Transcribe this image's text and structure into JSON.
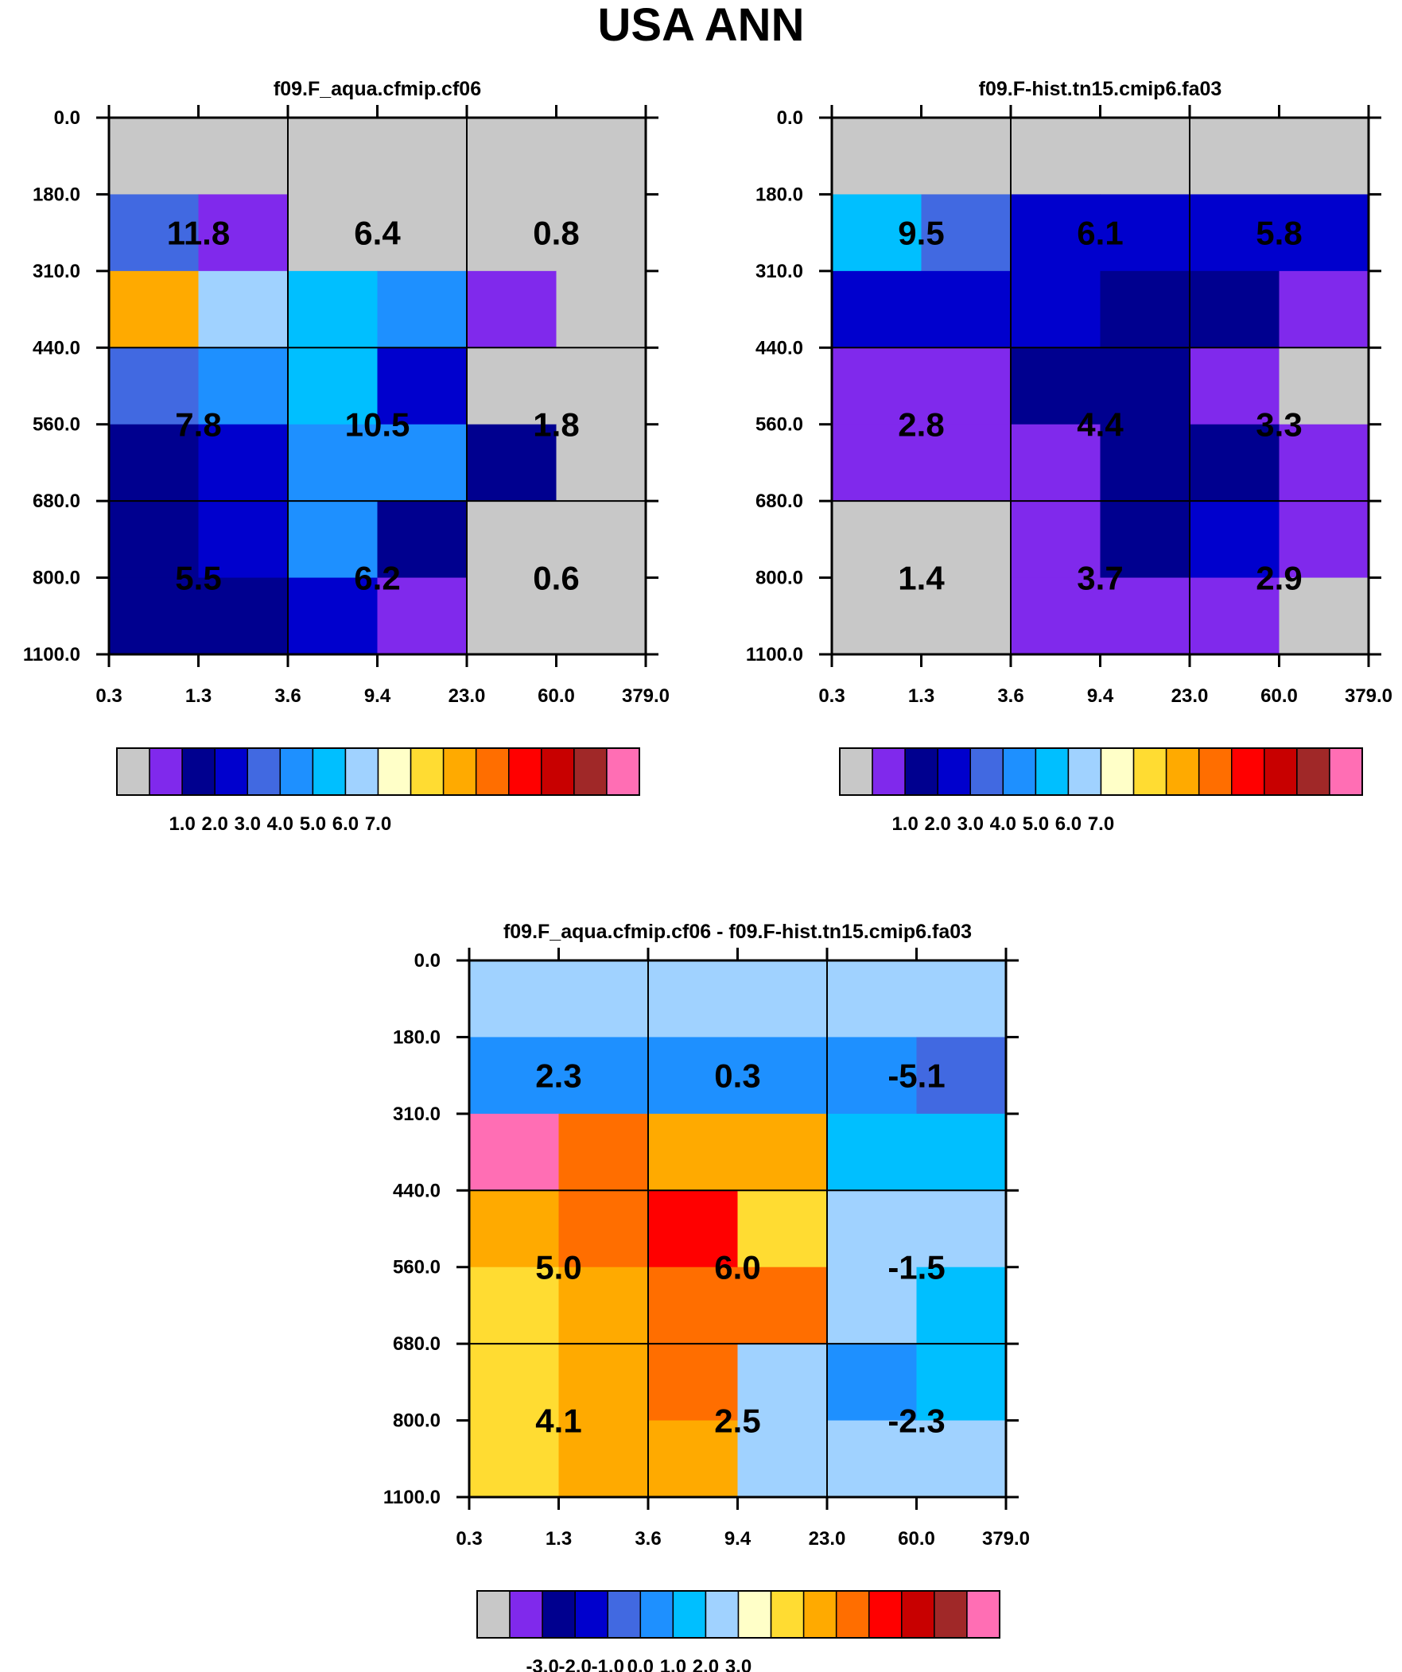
{
  "title": "USA ANN",
  "palette": [
    "#c8c8c8",
    "#8029ec",
    "#00008f",
    "#0000cd",
    "#4169e1",
    "#1e90ff",
    "#00bfff",
    "#a0d2ff",
    "#ffffc8",
    "#ffdc32",
    "#ffaa00",
    "#ff6e00",
    "#ff0000",
    "#c80000",
    "#a02828",
    "#ff6eb4"
  ],
  "chart_data": [
    {
      "type": "heatmap",
      "title": "f09.F_aqua.cfmip.cf06",
      "x_ticks": [
        "0.3",
        "1.3",
        "3.6",
        "9.4",
        "23.0",
        "60.0",
        "379.0"
      ],
      "y_ticks": [
        "0.0",
        "180.0",
        "310.0",
        "440.0",
        "560.0",
        "680.0",
        "800.0",
        "1100.0"
      ],
      "cells": [
        [
          0,
          0,
          0,
          0,
          0,
          0
        ],
        [
          4,
          1,
          0,
          0,
          0,
          0
        ],
        [
          10,
          7,
          6,
          5,
          1,
          0
        ],
        [
          4,
          5,
          6,
          3,
          0,
          0
        ],
        [
          2,
          3,
          5,
          5,
          2,
          0
        ],
        [
          2,
          3,
          5,
          2,
          0,
          0
        ],
        [
          2,
          2,
          3,
          1,
          0,
          0
        ]
      ],
      "labels": [
        {
          "value": "11.8",
          "col": 0,
          "row": 0
        },
        {
          "value": "6.4",
          "col": 1,
          "row": 0
        },
        {
          "value": "0.8",
          "col": 2,
          "row": 0
        },
        {
          "value": "7.8",
          "col": 0,
          "row": 1
        },
        {
          "value": "10.5",
          "col": 1,
          "row": 1
        },
        {
          "value": "1.8",
          "col": 2,
          "row": 1
        },
        {
          "value": "5.5",
          "col": 0,
          "row": 2
        },
        {
          "value": "6.2",
          "col": 1,
          "row": 2
        },
        {
          "value": "0.6",
          "col": 2,
          "row": 2
        }
      ],
      "colorbar_labels": [
        "1.0",
        "2.0",
        "3.0",
        "4.0",
        "5.0",
        "6.0",
        "7.0"
      ]
    },
    {
      "type": "heatmap",
      "title": "f09.F-hist.tn15.cmip6.fa03",
      "x_ticks": [
        "0.3",
        "1.3",
        "3.6",
        "9.4",
        "23.0",
        "60.0",
        "379.0"
      ],
      "y_ticks": [
        "0.0",
        "180.0",
        "310.0",
        "440.0",
        "560.0",
        "680.0",
        "800.0",
        "1100.0"
      ],
      "cells": [
        [
          0,
          0,
          0,
          0,
          0,
          0
        ],
        [
          6,
          4,
          3,
          3,
          3,
          3
        ],
        [
          3,
          3,
          3,
          2,
          2,
          1
        ],
        [
          1,
          1,
          2,
          2,
          1,
          0
        ],
        [
          1,
          1,
          1,
          2,
          2,
          1
        ],
        [
          0,
          0,
          1,
          2,
          3,
          1
        ],
        [
          0,
          0,
          1,
          1,
          1,
          0
        ]
      ],
      "labels": [
        {
          "value": "9.5",
          "col": 0,
          "row": 0
        },
        {
          "value": "6.1",
          "col": 1,
          "row": 0
        },
        {
          "value": "5.8",
          "col": 2,
          "row": 0
        },
        {
          "value": "2.8",
          "col": 0,
          "row": 1
        },
        {
          "value": "4.4",
          "col": 1,
          "row": 1
        },
        {
          "value": "3.3",
          "col": 2,
          "row": 1
        },
        {
          "value": "1.4",
          "col": 0,
          "row": 2
        },
        {
          "value": "3.7",
          "col": 1,
          "row": 2
        },
        {
          "value": "2.9",
          "col": 2,
          "row": 2
        }
      ],
      "colorbar_labels": [
        "1.0",
        "2.0",
        "3.0",
        "4.0",
        "5.0",
        "6.0",
        "7.0"
      ]
    },
    {
      "type": "heatmap",
      "title": "f09.F_aqua.cfmip.cf06 - f09.F-hist.tn15.cmip6.fa03",
      "x_ticks": [
        "0.3",
        "1.3",
        "3.6",
        "9.4",
        "23.0",
        "60.0",
        "379.0"
      ],
      "y_ticks": [
        "0.0",
        "180.0",
        "310.0",
        "440.0",
        "560.0",
        "680.0",
        "800.0",
        "1100.0"
      ],
      "cells": [
        [
          7,
          7,
          7,
          7,
          7,
          7
        ],
        [
          5,
          5,
          5,
          5,
          5,
          4
        ],
        [
          15,
          11,
          10,
          10,
          6,
          6
        ],
        [
          10,
          11,
          12,
          9,
          7,
          7
        ],
        [
          9,
          10,
          11,
          11,
          7,
          6
        ],
        [
          9,
          10,
          11,
          7,
          5,
          6
        ],
        [
          9,
          10,
          10,
          7,
          7,
          7
        ]
      ],
      "labels": [
        {
          "value": "2.3",
          "col": 0,
          "row": 0
        },
        {
          "value": "0.3",
          "col": 1,
          "row": 0
        },
        {
          "value": "-5.1",
          "col": 2,
          "row": 0
        },
        {
          "value": "5.0",
          "col": 0,
          "row": 1
        },
        {
          "value": "6.0",
          "col": 1,
          "row": 1
        },
        {
          "value": "-1.5",
          "col": 2,
          "row": 1
        },
        {
          "value": "4.1",
          "col": 0,
          "row": 2
        },
        {
          "value": "2.5",
          "col": 1,
          "row": 2
        },
        {
          "value": "-2.3",
          "col": 2,
          "row": 2
        }
      ],
      "colorbar_labels": [
        "-3.0",
        "-2.0",
        "-1.0",
        "0.0",
        "1.0",
        "2.0",
        "3.0"
      ]
    }
  ]
}
